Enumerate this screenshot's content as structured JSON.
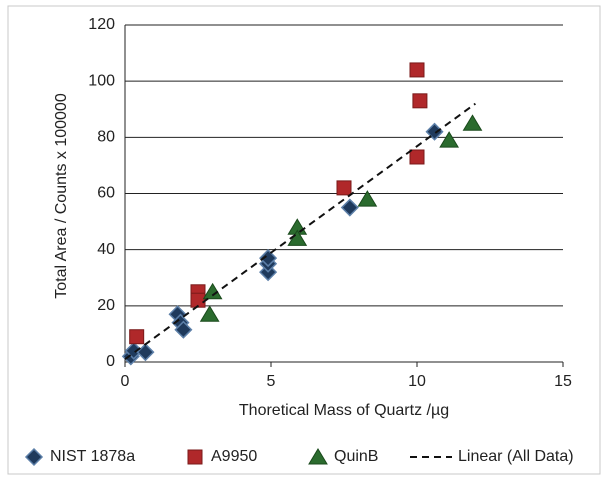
{
  "chart_data": {
    "type": "scatter",
    "x_label": "Thoretical Mass of Quartz /µg",
    "y_label": "Total Area / Counts x 100000",
    "xlim": [
      0,
      15
    ],
    "xticks": [
      0,
      5,
      10,
      15
    ],
    "ylim": [
      0,
      120
    ],
    "yticks": [
      0,
      20,
      40,
      60,
      80,
      100,
      120
    ],
    "grid": true,
    "legend": "bottom",
    "series": [
      {
        "name": "NIST 1878a",
        "color": "#1f3a5c",
        "marker": "diamond",
        "x": [
          0.2,
          0.3,
          0.7,
          1.8,
          1.9,
          2.0,
          4.9,
          4.9,
          4.9,
          7.7,
          10.6
        ],
        "values": [
          2,
          4,
          3.5,
          17,
          14,
          11.5,
          32,
          35,
          37,
          55,
          82
        ]
      },
      {
        "name": "A9950",
        "color": "#b0282a",
        "marker": "square",
        "x": [
          0.4,
          2.5,
          2.5,
          7.5,
          10.0,
          10.1,
          10.0
        ],
        "values": [
          9,
          25,
          22,
          62,
          104,
          93,
          73
        ]
      },
      {
        "name": "QuinB",
        "color": "#2b6b2e",
        "marker": "triangle",
        "x": [
          3.0,
          2.9,
          5.9,
          5.9,
          8.3,
          11.1,
          11.9
        ],
        "values": [
          25,
          17,
          48,
          44,
          58,
          79,
          85
        ]
      },
      {
        "name": "Linear (All Data)",
        "color": "#111111",
        "marker": "dashed-line",
        "x": [
          0,
          12
        ],
        "values": [
          1,
          92
        ]
      }
    ]
  }
}
